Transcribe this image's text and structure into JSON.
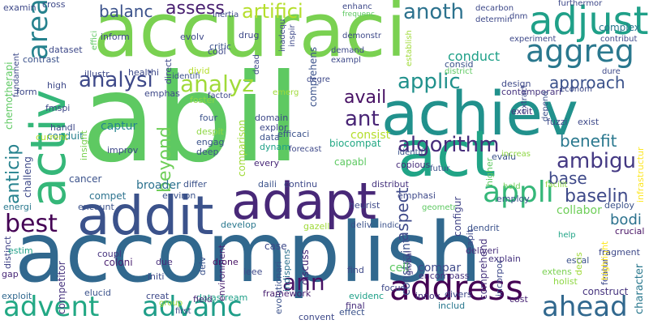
{
  "words": [
    {
      "text": "accomplish",
      "color": "#31688e",
      "vertical": false
    },
    {
      "text": "abil",
      "color": "#5ec962",
      "vertical": false
    },
    {
      "text": "accuraci",
      "color": "#7ad151",
      "vertical": false
    },
    {
      "text": "achiev",
      "color": "#21918c",
      "vertical": false
    },
    {
      "text": "act",
      "color": "#20a486",
      "vertical": false
    },
    {
      "text": "adapt",
      "color": "#482878",
      "vertical": false
    },
    {
      "text": "addit",
      "color": "#3b528b",
      "vertical": false
    },
    {
      "text": "activ",
      "color": "#35b779",
      "vertical": true
    },
    {
      "text": "adjust",
      "color": "#1fa088",
      "vertical": false
    },
    {
      "text": "address",
      "color": "#440154",
      "vertical": false
    },
    {
      "text": "advanc",
      "color": "#1f9e89",
      "vertical": false
    },
    {
      "text": "advent",
      "color": "#22a884",
      "vertical": false
    },
    {
      "text": "ahead",
      "color": "#31688e",
      "vertical": false
    },
    {
      "text": "aggreg",
      "color": "#2a788e",
      "vertical": false
    },
    {
      "text": "appli",
      "color": "#35b779",
      "vertical": false
    },
    {
      "text": "area",
      "color": "#26828e",
      "vertical": true
    },
    {
      "text": "analysi",
      "color": "#3e4989",
      "vertical": false
    },
    {
      "text": "analyz",
      "color": "#a0da39",
      "vertical": false
    },
    {
      "text": "artifici",
      "color": "#b5de2b",
      "vertical": false
    },
    {
      "text": "algorithm",
      "color": "#472d7b",
      "vertical": false
    },
    {
      "text": "ambigu",
      "color": "#443983",
      "vertical": false
    },
    {
      "text": "baselin",
      "color": "#3e4989",
      "vertical": false
    },
    {
      "text": "best",
      "color": "#440154",
      "vertical": false
    },
    {
      "text": "anoth",
      "color": "#2c728e",
      "vertical": false
    },
    {
      "text": "ann",
      "color": "#471164",
      "vertical": false
    },
    {
      "text": "ant",
      "color": "#482475",
      "vertical": false
    },
    {
      "text": "applic",
      "color": "#21918c",
      "vertical": false
    },
    {
      "text": "approach",
      "color": "#3b528b",
      "vertical": false
    },
    {
      "text": "assess",
      "color": "#481f70",
      "vertical": false
    },
    {
      "text": "balanc",
      "color": "#3b528b",
      "vertical": false
    },
    {
      "text": "benefit",
      "color": "#2a788e",
      "vertical": false
    },
    {
      "text": "base",
      "color": "#3e4989",
      "vertical": false
    },
    {
      "text": "anticip",
      "color": "#26828e",
      "vertical": true
    },
    {
      "text": "avail",
      "color": "#471164",
      "vertical": false
    },
    {
      "text": "beyond",
      "color": "#6ece58",
      "vertical": true
    },
    {
      "text": "aspect",
      "color": "#3e4989",
      "vertical": true
    },
    {
      "text": "bodi",
      "color": "#2c728e",
      "vertical": false
    },
    {
      "text": "conduct",
      "color": "#1fa088",
      "vertical": false
    },
    {
      "text": "consist",
      "color": "#b5de2b",
      "vertical": false
    },
    {
      "text": "captur",
      "color": "#25858e",
      "vertical": false
    },
    {
      "text": "broader",
      "color": "#2c728e",
      "vertical": false
    },
    {
      "text": "collabor",
      "color": "#6ece58",
      "vertical": false
    },
    {
      "text": "biocompat",
      "color": "#22a884",
      "vertical": false
    },
    {
      "text": "capabl",
      "color": "#5ec962",
      "vertical": false
    },
    {
      "text": "compar",
      "color": "#3e4989",
      "vertical": false
    },
    {
      "text": "constraint",
      "color": "#3b528b",
      "vertical": true
    },
    {
      "text": "comprehend",
      "color": "#46337e",
      "vertical": true
    },
    {
      "text": "competitor",
      "color": "#46337e",
      "vertical": true
    },
    {
      "text": "colon",
      "color": "#481f70",
      "vertical": false
    },
    {
      "text": "configur",
      "color": "#414487",
      "vertical": true
    },
    {
      "text": "cell",
      "color": "#5ec962",
      "vertical": false
    },
    {
      "text": "case",
      "color": "#3e4989",
      "vertical": false
    },
    {
      "text": "cancer",
      "color": "#3b528b",
      "vertical": false
    },
    {
      "text": "compet",
      "color": "#2c728e",
      "vertical": false
    },
    {
      "text": "challeng",
      "color": "#3e4989",
      "vertical": true
    },
    {
      "text": "character",
      "color": "#2a788e",
      "vertical": true
    },
    {
      "text": "construct",
      "color": "#46337e",
      "vertical": false
    },
    {
      "text": "conduit",
      "color": "#27808e",
      "vertical": false
    },
    {
      "text": "chemotherapi",
      "color": "#5ec962",
      "vertical": true
    },
    {
      "text": "deploy",
      "color": "#3b528b",
      "vertical": false
    },
    {
      "text": "complex",
      "color": "#2a788e",
      "vertical": false
    },
    {
      "text": "consid",
      "color": "#3b528b",
      "vertical": false
    },
    {
      "text": "contemporari",
      "color": "#46337e",
      "vertical": false
    },
    {
      "text": "design",
      "color": "#3e4989",
      "vertical": false
    },
    {
      "text": "comparison",
      "color": "#a0da39",
      "vertical": true
    },
    {
      "text": "comprehens",
      "color": "#3b528b",
      "vertical": true
    },
    {
      "text": "crucial",
      "color": "#471164",
      "vertical": false
    },
    {
      "text": "exist",
      "color": "#3e4989",
      "vertical": false
    },
    {
      "text": "employ",
      "color": "#3b528b",
      "vertical": false
    },
    {
      "text": "copious",
      "color": "#472d7b",
      "vertical": false
    },
    {
      "text": "discuss",
      "color": "#482878",
      "vertical": true
    },
    {
      "text": "encompass",
      "color": "#46337e",
      "vertical": false
    },
    {
      "text": "emphasi",
      "color": "#3e4989",
      "vertical": false
    },
    {
      "text": "evolutionari",
      "color": "#3b528b",
      "vertical": true
    },
    {
      "text": "divers",
      "color": "#3e4989",
      "vertical": false
    },
    {
      "text": "deliveri",
      "color": "#472d7b",
      "vertical": false
    },
    {
      "text": "distribut",
      "color": "#46337e",
      "vertical": false
    },
    {
      "text": "excit",
      "color": "#46337e",
      "vertical": false
    },
    {
      "text": "cost",
      "color": "#482475",
      "vertical": false
    },
    {
      "text": "escal",
      "color": "#3b528b",
      "vertical": false
    },
    {
      "text": "explain",
      "color": "#46337e",
      "vertical": false
    },
    {
      "text": "every",
      "color": "#482878",
      "vertical": false
    },
    {
      "text": "datastream",
      "color": "#1fa088",
      "vertical": false
    },
    {
      "text": "drone",
      "color": "#471164",
      "vertical": false
    },
    {
      "text": "environment",
      "color": "#481f70",
      "vertical": true
    },
    {
      "text": "evalu",
      "color": "#3b528b",
      "vertical": false
    },
    {
      "text": "distinct",
      "color": "#414487",
      "vertical": true
    },
    {
      "text": "creat",
      "color": "#3e4989",
      "vertical": false
    },
    {
      "text": "elucid",
      "color": "#3b528b",
      "vertical": false
    },
    {
      "text": "encount",
      "color": "#3b528b",
      "vertical": false
    },
    {
      "text": "coloni",
      "color": "#481f70",
      "vertical": false
    },
    {
      "text": "coupl",
      "color": "#46337e",
      "vertical": false
    },
    {
      "text": "due",
      "color": "#472d7b",
      "vertical": false
    },
    {
      "text": "initi",
      "color": "#3e4989",
      "vertical": false
    },
    {
      "text": "ieee",
      "color": "#3e4989",
      "vertical": false
    },
    {
      "text": "exploit",
      "color": "#31688e",
      "vertical": false
    },
    {
      "text": "gap",
      "color": "#482878",
      "vertical": false
    },
    {
      "text": "estim",
      "color": "#1fa088",
      "vertical": false
    },
    {
      "text": "field",
      "color": "#482878",
      "vertical": false
    },
    {
      "text": "effect",
      "color": "#3b528b",
      "vertical": false
    },
    {
      "text": "final",
      "color": "#472d7b",
      "vertical": false
    },
    {
      "text": "find",
      "color": "#3e4989",
      "vertical": false
    },
    {
      "text": "convent",
      "color": "#3e4989",
      "vertical": false
    },
    {
      "text": "framework",
      "color": "#481f70",
      "vertical": false
    },
    {
      "text": "evidenc",
      "color": "#1fa088",
      "vertical": false
    },
    {
      "text": "innov",
      "color": "#46337e",
      "vertical": false
    },
    {
      "text": "focus",
      "color": "#3e4989",
      "vertical": false
    },
    {
      "text": "holist",
      "color": "#8fd744",
      "vertical": false
    },
    {
      "text": "featur",
      "color": "#3e4989",
      "vertical": true
    },
    {
      "text": "decis",
      "color": "#a0da39",
      "vertical": true
    },
    {
      "text": "highlight",
      "color": "#fde725",
      "vertical": true
    },
    {
      "text": "incorpor",
      "color": "#3e4989",
      "vertical": true
    },
    {
      "text": "fragment",
      "color": "#3e4989",
      "vertical": false
    },
    {
      "text": "extens",
      "color": "#7ad151",
      "vertical": false
    },
    {
      "text": "help",
      "color": "#20a486",
      "vertical": false
    },
    {
      "text": "global",
      "color": "#443983",
      "vertical": true
    },
    {
      "text": "capit",
      "color": "#3e4989",
      "vertical": true
    },
    {
      "text": "dendrit",
      "color": "#3b528b",
      "vertical": false
    },
    {
      "text": "indispens",
      "color": "#2c728e",
      "vertical": true
    },
    {
      "text": "deliv",
      "color": "#3b528b",
      "vertical": false
    },
    {
      "text": "gazell",
      "color": "#a0da39",
      "vertical": false
    },
    {
      "text": "indic",
      "color": "#3b528b",
      "vertical": false
    },
    {
      "text": "geometr",
      "color": "#5ec962",
      "vertical": false
    },
    {
      "text": "heurist",
      "color": "#3e4989",
      "vertical": false
    },
    {
      "text": "includ",
      "color": "#2a788e",
      "vertical": false
    },
    {
      "text": "delv",
      "color": "#3b528b",
      "vertical": true
    },
    {
      "text": "develop",
      "color": "#2a788e",
      "vertical": false
    },
    {
      "text": "continu",
      "color": "#3e4989",
      "vertical": false
    },
    {
      "text": "daili",
      "color": "#3b528b",
      "vertical": false
    },
    {
      "text": "environ",
      "color": "#3b528b",
      "vertical": false
    },
    {
      "text": "differ",
      "color": "#3b528b",
      "vertical": false
    },
    {
      "text": "energi",
      "color": "#2a788e",
      "vertical": false
    },
    {
      "text": "improv",
      "color": "#3e4989",
      "vertical": false
    },
    {
      "text": "deep",
      "color": "#3b528b",
      "vertical": false
    },
    {
      "text": "engag",
      "color": "#3b528b",
      "vertical": false
    },
    {
      "text": "despit",
      "color": "#8fd744",
      "vertical": false
    },
    {
      "text": "four",
      "color": "#3b528b",
      "vertical": false
    },
    {
      "text": "data",
      "color": "#3b528b",
      "vertical": false
    },
    {
      "text": "dynam",
      "color": "#1fa088",
      "vertical": false
    },
    {
      "text": "explor",
      "color": "#3e4989",
      "vertical": false
    },
    {
      "text": "domain",
      "color": "#3e4989",
      "vertical": false
    },
    {
      "text": "efficaci",
      "color": "#3b528b",
      "vertical": false
    },
    {
      "text": "forecast",
      "color": "#3e4989",
      "vertical": false
    },
    {
      "text": "identif",
      "color": "#3b528b",
      "vertical": false
    },
    {
      "text": "futur",
      "color": "#3b528b",
      "vertical": false
    },
    {
      "text": "increas",
      "color": "#8fd744",
      "vertical": false
    },
    {
      "text": "hold",
      "color": "#6ece58",
      "vertical": false
    },
    {
      "text": "facilit",
      "color": "#8fd744",
      "vertical": false
    },
    {
      "text": "infrastructur",
      "color": "#fde725",
      "vertical": true
    },
    {
      "text": "fuzzi",
      "color": "#3e4989",
      "vertical": false
    },
    {
      "text": "extract",
      "color": "#3e4989",
      "vertical": true
    },
    {
      "text": "depend",
      "color": "#3b528b",
      "vertical": true
    },
    {
      "text": "higher",
      "color": "#5ec962",
      "vertical": true
    },
    {
      "text": "insight",
      "color": "#7ad151",
      "vertical": true
    },
    {
      "text": "current",
      "color": "#b5de2b",
      "vertical": false
    },
    {
      "text": "handl",
      "color": "#3e4989",
      "vertical": false
    },
    {
      "text": "fmspi",
      "color": "#3e4989",
      "vertical": false
    },
    {
      "text": "form",
      "color": "#3e4989",
      "vertical": false
    },
    {
      "text": "high",
      "color": "#3e4989",
      "vertical": false
    },
    {
      "text": "fundament",
      "color": "#3e4989",
      "vertical": true
    },
    {
      "text": "contrast",
      "color": "#3b528b",
      "vertical": false
    },
    {
      "text": "dataset",
      "color": "#3e4989",
      "vertical": false
    },
    {
      "text": "illustr",
      "color": "#3e4989",
      "vertical": false
    },
    {
      "text": "healthi",
      "color": "#3e4989",
      "vertical": false
    },
    {
      "text": "inform",
      "color": "#3e4989",
      "vertical": false
    },
    {
      "text": "effici",
      "color": "#5ec962",
      "vertical": true
    },
    {
      "text": "direct",
      "color": "#3e4989",
      "vertical": true
    },
    {
      "text": "identifi",
      "color": "#3b528b",
      "vertical": false
    },
    {
      "text": "emphas",
      "color": "#3e4989",
      "vertical": false
    },
    {
      "text": "foster",
      "color": "#8fd744",
      "vertical": false
    },
    {
      "text": "divid",
      "color": "#b5de2b",
      "vertical": false
    },
    {
      "text": "critic",
      "color": "#3b528b",
      "vertical": false
    },
    {
      "text": "drug",
      "color": "#3e4989",
      "vertical": false
    },
    {
      "text": "cool",
      "color": "#3e4989",
      "vertical": false
    },
    {
      "text": "evolv",
      "color": "#3e4989",
      "vertical": false
    },
    {
      "text": "dead",
      "color": "#3e4989",
      "vertical": true
    },
    {
      "text": "factor",
      "color": "#3e4989",
      "vertical": false
    },
    {
      "text": "emerg",
      "color": "#a0da39",
      "vertical": false
    },
    {
      "text": "degre",
      "color": "#3e4989",
      "vertical": false
    },
    {
      "text": "demand",
      "color": "#3e4989",
      "vertical": false
    },
    {
      "text": "exampl",
      "color": "#3e4989",
      "vertical": false
    },
    {
      "text": "demonstr",
      "color": "#3e4989",
      "vertical": false
    },
    {
      "text": "inadequ",
      "color": "#3e4989",
      "vertical": true
    },
    {
      "text": "inspir",
      "color": "#3e4989",
      "vertical": true
    },
    {
      "text": "cross",
      "color": "#3e4989",
      "vertical": false
    },
    {
      "text": "examin",
      "color": "#3e4989",
      "vertical": false
    },
    {
      "text": "inertia",
      "color": "#3e4989",
      "vertical": false
    },
    {
      "text": "enhanc",
      "color": "#3e4989",
      "vertical": false
    },
    {
      "text": "frequenc",
      "color": "#5ec962",
      "vertical": false
    },
    {
      "text": "establish",
      "color": "#a0da39",
      "vertical": true
    },
    {
      "text": "district",
      "color": "#5ec962",
      "vertical": false
    },
    {
      "text": "decarbon",
      "color": "#3e4989",
      "vertical": false
    },
    {
      "text": "determin",
      "color": "#3e4989",
      "vertical": false
    },
    {
      "text": "dnm",
      "color": "#3e4989",
      "vertical": false
    },
    {
      "text": "furthermor",
      "color": "#3e4989",
      "vertical": false
    },
    {
      "text": "experiment",
      "color": "#3e4989",
      "vertical": false
    },
    {
      "text": "contribut",
      "color": "#3e4989",
      "vertical": false
    },
    {
      "text": "econom",
      "color": "#3e4989",
      "vertical": false
    },
    {
      "text": "dure",
      "color": "#3e4989",
      "vertical": false
    },
    {
      "text": "group",
      "color": "#a0da39",
      "vertical": false
    },
    {
      "text": "first",
      "color": "#3e4989",
      "vertical": false
    }
  ]
}
